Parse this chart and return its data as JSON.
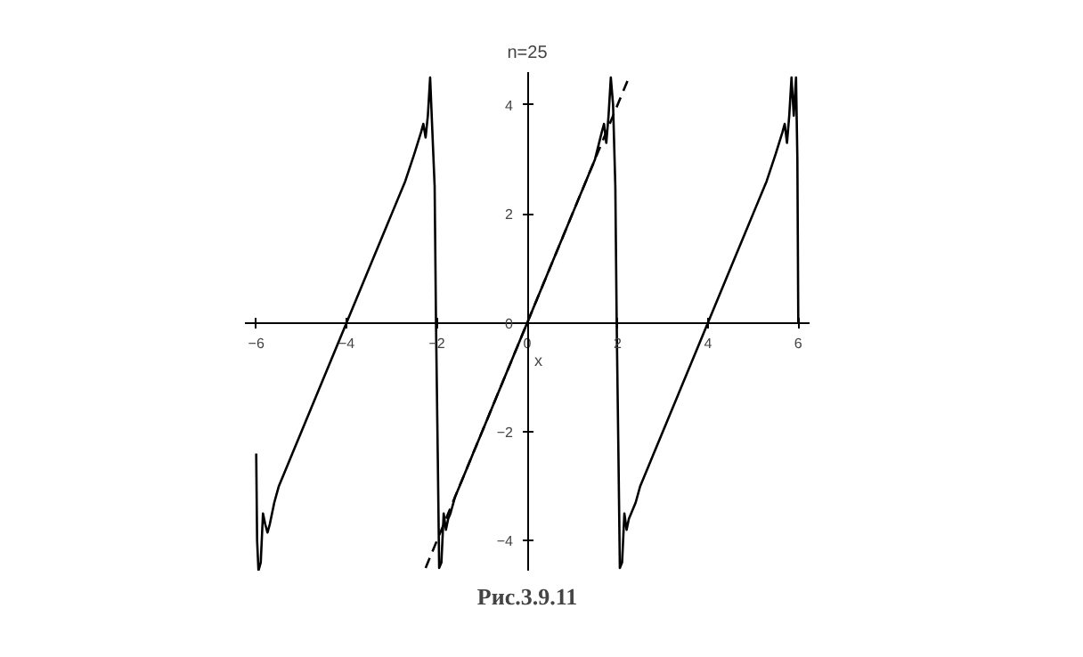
{
  "chart_data": {
    "type": "line",
    "title": "n=25",
    "xlabel": "x",
    "annotations": [
      "Рис.3.9.11"
    ],
    "xlim": [
      -6.25,
      6.25
    ],
    "ylim": [
      -4.55,
      4.6
    ],
    "xticks": [
      -6,
      -4,
      -2,
      0,
      2,
      4,
      6
    ],
    "yticks": [
      -4,
      -2,
      0,
      2,
      4
    ],
    "grid": false,
    "marker": "none",
    "series": [
      {
        "color": "#000000",
        "line_style": "solid",
        "x": [
          -6,
          -5.98,
          -5.95,
          -5.9,
          -5.85,
          -5.8,
          -5.75,
          -5.7,
          -5.6,
          -5.5,
          -5.3,
          -5,
          -4.5,
          -4,
          -3.5,
          -3,
          -2.7,
          -2.5,
          -2.35,
          -2.3,
          -2.25,
          -2.2,
          -2.15,
          -2.1,
          -2.05,
          -2.02,
          -1.98,
          -1.95,
          -1.9,
          -1.85,
          -1.8,
          -1.75,
          -1.7,
          -1.6,
          -1.5,
          -1.3,
          -1,
          -0.5,
          0,
          0.5,
          1,
          1.3,
          1.5,
          1.65,
          1.7,
          1.75,
          1.8,
          1.85,
          1.9,
          1.95,
          1.98,
          2.02,
          2.05,
          2.1,
          2.15,
          2.2,
          2.25,
          2.3,
          2.4,
          2.5,
          2.7,
          3,
          3.5,
          4,
          4.5,
          5,
          5.3,
          5.5,
          5.65,
          5.7,
          5.75,
          5.8,
          5.85,
          5.9,
          5.95,
          5.98,
          6
        ],
        "values": [
          -2.4,
          -4.0,
          -4.55,
          -4.4,
          -3.5,
          -3.7,
          -3.85,
          -3.7,
          -3.3,
          -3.0,
          -2.6,
          -2.0,
          -1.0,
          0,
          1.0,
          2.0,
          2.6,
          3.1,
          3.5,
          3.65,
          3.4,
          3.8,
          4.5,
          3.5,
          2.5,
          0,
          -2.5,
          -4.5,
          -4.4,
          -3.5,
          -3.8,
          -3.6,
          -3.5,
          -3.2,
          -3.0,
          -2.6,
          -2.0,
          -1.0,
          0,
          1.0,
          2.0,
          2.6,
          3.0,
          3.5,
          3.65,
          3.3,
          3.8,
          4.5,
          4.0,
          2.5,
          0,
          -2.5,
          -4.5,
          -4.4,
          -3.5,
          -3.8,
          -3.6,
          -3.5,
          -3.3,
          -3.0,
          -2.6,
          -2.0,
          -1.0,
          0,
          1.0,
          2.0,
          2.6,
          3.1,
          3.5,
          3.65,
          3.3,
          3.8,
          4.5,
          3.8,
          4.5,
          3.0,
          0
        ]
      },
      {
        "color": "#000000",
        "line_style": "dashed",
        "x": [
          -2.25,
          2.25
        ],
        "values": [
          -4.5,
          4.5
        ]
      }
    ]
  }
}
